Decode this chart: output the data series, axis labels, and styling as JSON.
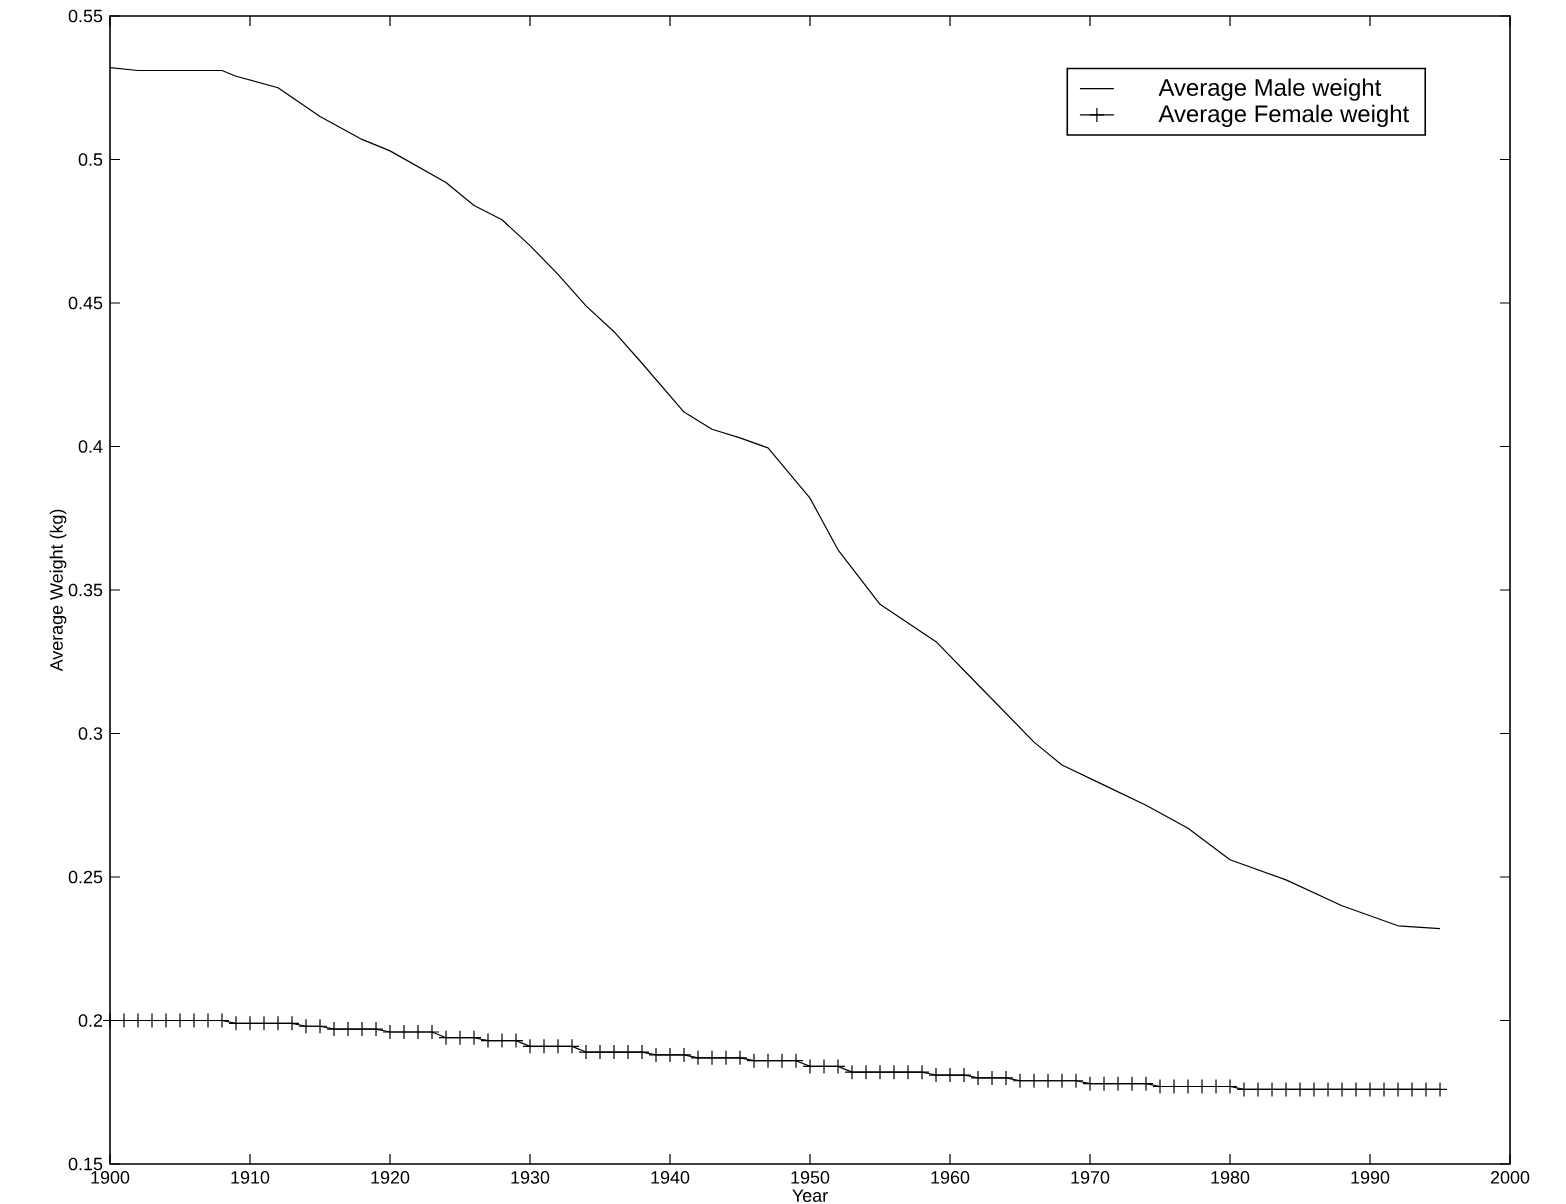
{
  "chart_data": {
    "type": "line",
    "xlabel": "Year",
    "ylabel": "Average Weight (kg)",
    "xlim": [
      1900,
      2000
    ],
    "xticks": [
      1900,
      1910,
      1920,
      1930,
      1940,
      1950,
      1960,
      1970,
      1980,
      1990,
      2000
    ],
    "ylim": [
      0.15,
      0.55
    ],
    "yticks": [
      0.15,
      0.2,
      0.25,
      0.3,
      0.35,
      0.4,
      0.45,
      0.5,
      0.55
    ],
    "legend": "top right",
    "grid": false,
    "line_style": "solid",
    "series": [
      {
        "name": "Average Male weight",
        "color": "#000000",
        "marker": "none",
        "x": [
          1900,
          1902,
          1908,
          1909,
          1912,
          1915,
          1918,
          1920,
          1924,
          1926,
          1928,
          1930,
          1932,
          1934,
          1936,
          1938,
          1941,
          1943,
          1945,
          1947,
          1950,
          1952,
          1955,
          1959,
          1962,
          1966,
          1968,
          1971,
          1974,
          1977,
          1980,
          1984,
          1988,
          1992,
          1995
        ],
        "values": [
          0.532,
          0.531,
          0.531,
          0.529,
          0.525,
          0.515,
          0.507,
          0.503,
          0.492,
          0.484,
          0.479,
          0.47,
          0.46,
          0.449,
          0.44,
          0.429,
          0.412,
          0.406,
          0.403,
          0.3995,
          0.382,
          0.364,
          0.345,
          0.332,
          0.317,
          0.297,
          0.289,
          0.282,
          0.275,
          0.267,
          0.256,
          0.249,
          0.24,
          0.233,
          0.232
        ]
      },
      {
        "name": "Average Female weight",
        "color": "#000000",
        "marker": "cross",
        "x": [
          1900,
          1901,
          1902,
          1903,
          1904,
          1905,
          1906,
          1907,
          1908,
          1909,
          1910,
          1911,
          1912,
          1913,
          1914,
          1915,
          1916,
          1917,
          1918,
          1919,
          1920,
          1921,
          1922,
          1923,
          1924,
          1925,
          1926,
          1927,
          1928,
          1929,
          1930,
          1931,
          1932,
          1933,
          1934,
          1935,
          1936,
          1937,
          1938,
          1939,
          1940,
          1941,
          1942,
          1943,
          1944,
          1945,
          1946,
          1947,
          1948,
          1949,
          1950,
          1951,
          1952,
          1953,
          1954,
          1955,
          1956,
          1957,
          1958,
          1959,
          1960,
          1961,
          1962,
          1963,
          1964,
          1965,
          1966,
          1967,
          1968,
          1969,
          1970,
          1971,
          1972,
          1973,
          1974,
          1975,
          1976,
          1977,
          1978,
          1979,
          1980,
          1981,
          1982,
          1983,
          1984,
          1985,
          1986,
          1987,
          1988,
          1989,
          1990,
          1991,
          1992,
          1993,
          1994,
          1995
        ],
        "values": [
          0.2,
          0.2,
          0.2,
          0.2,
          0.2,
          0.2,
          0.2,
          0.2,
          0.2,
          0.199,
          0.199,
          0.199,
          0.199,
          0.199,
          0.198,
          0.198,
          0.197,
          0.197,
          0.197,
          0.197,
          0.196,
          0.196,
          0.196,
          0.196,
          0.194,
          0.194,
          0.194,
          0.193,
          0.193,
          0.193,
          0.191,
          0.191,
          0.191,
          0.191,
          0.189,
          0.189,
          0.189,
          0.189,
          0.189,
          0.188,
          0.188,
          0.188,
          0.187,
          0.187,
          0.187,
          0.187,
          0.186,
          0.186,
          0.186,
          0.186,
          0.184,
          0.184,
          0.184,
          0.182,
          0.182,
          0.182,
          0.182,
          0.182,
          0.182,
          0.181,
          0.181,
          0.181,
          0.18,
          0.18,
          0.18,
          0.179,
          0.179,
          0.179,
          0.179,
          0.179,
          0.178,
          0.178,
          0.178,
          0.178,
          0.178,
          0.177,
          0.177,
          0.177,
          0.177,
          0.177,
          0.177,
          0.176,
          0.176,
          0.176,
          0.176,
          0.176,
          0.176,
          0.176,
          0.176,
          0.176,
          0.176,
          0.176,
          0.176,
          0.176,
          0.176,
          0.176
        ]
      }
    ]
  }
}
